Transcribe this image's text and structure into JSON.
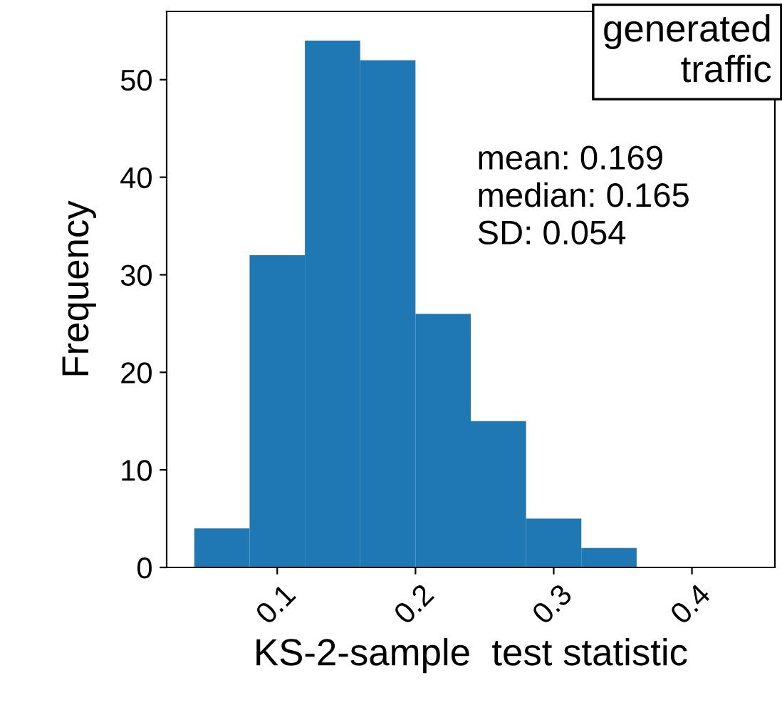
{
  "chart_data": {
    "type": "histogram",
    "xlabel": "KS-2-sample  test statistic",
    "ylabel": "Frequency",
    "annotations": [
      "generated\ntraffic",
      "mean: 0.169\nmedian: 0.165\nSD: 0.054"
    ],
    "bins": [
      0.04,
      0.08,
      0.12,
      0.16,
      0.2,
      0.24,
      0.28,
      0.32,
      0.36,
      0.4,
      0.44
    ],
    "values": [
      4,
      32,
      54,
      52,
      26,
      15,
      5,
      2,
      0,
      0
    ],
    "color": "#1f77b4",
    "xlim": [
      0.02,
      0.46
    ],
    "xticks": [
      0.1,
      0.2,
      0.3,
      0.4
    ],
    "ylim": [
      0,
      57
    ],
    "yticks": [
      0,
      10,
      20,
      30,
      40,
      50
    ],
    "grid": false
  }
}
